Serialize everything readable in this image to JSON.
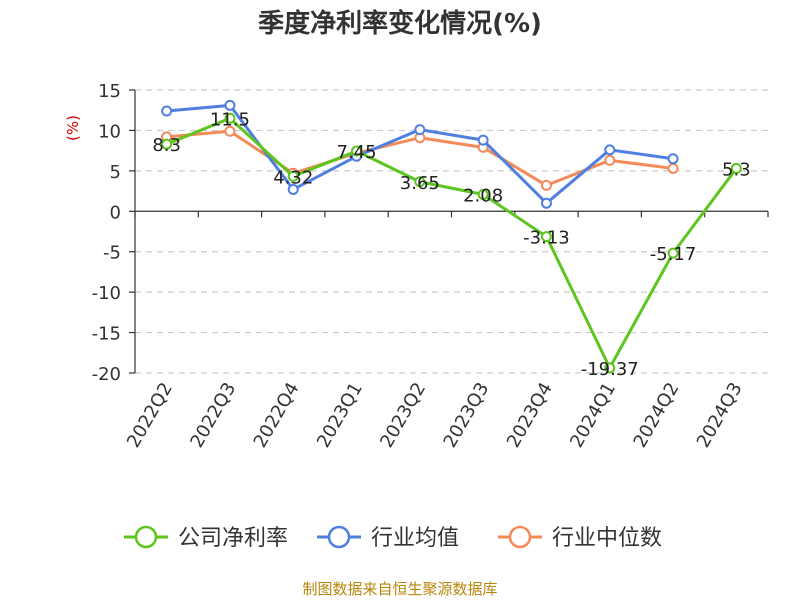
{
  "chart_data": {
    "type": "line",
    "title": "季度净利率变化情况(%)",
    "ylabel": "(%)",
    "categories": [
      "2022Q2",
      "2022Q3",
      "2022Q4",
      "2023Q1",
      "2023Q2",
      "2023Q3",
      "2023Q4",
      "2024Q1",
      "2024Q2",
      "2024Q3"
    ],
    "ylim": [
      -20,
      15
    ],
    "yticks": [
      15,
      10,
      5,
      0,
      -5,
      -10,
      -15,
      -20
    ],
    "grid": true,
    "legend_position": "bottom",
    "series": [
      {
        "name": "公司净利率",
        "color": "#5ec41e",
        "values": [
          8.3,
          11.5,
          4.32,
          7.45,
          3.65,
          2.08,
          -3.13,
          -19.37,
          -5.17,
          5.3
        ],
        "labels": [
          "8.3",
          "11.5",
          "4.32",
          "7.45",
          "3.65",
          "2.08",
          "-3.13",
          "-19.37",
          "-5.17",
          "5.3"
        ]
      },
      {
        "name": "行业均值",
        "color": "#4f7fe0",
        "values": [
          12.4,
          13.1,
          2.7,
          6.8,
          10.1,
          8.8,
          1.0,
          7.6,
          6.5,
          null
        ]
      },
      {
        "name": "行业中位数",
        "color": "#f4895a",
        "values": [
          9.2,
          9.9,
          4.7,
          7.2,
          9.1,
          7.9,
          3.2,
          6.3,
          5.3,
          null
        ]
      }
    ],
    "source": "制图数据来自恒生聚源数据库"
  }
}
